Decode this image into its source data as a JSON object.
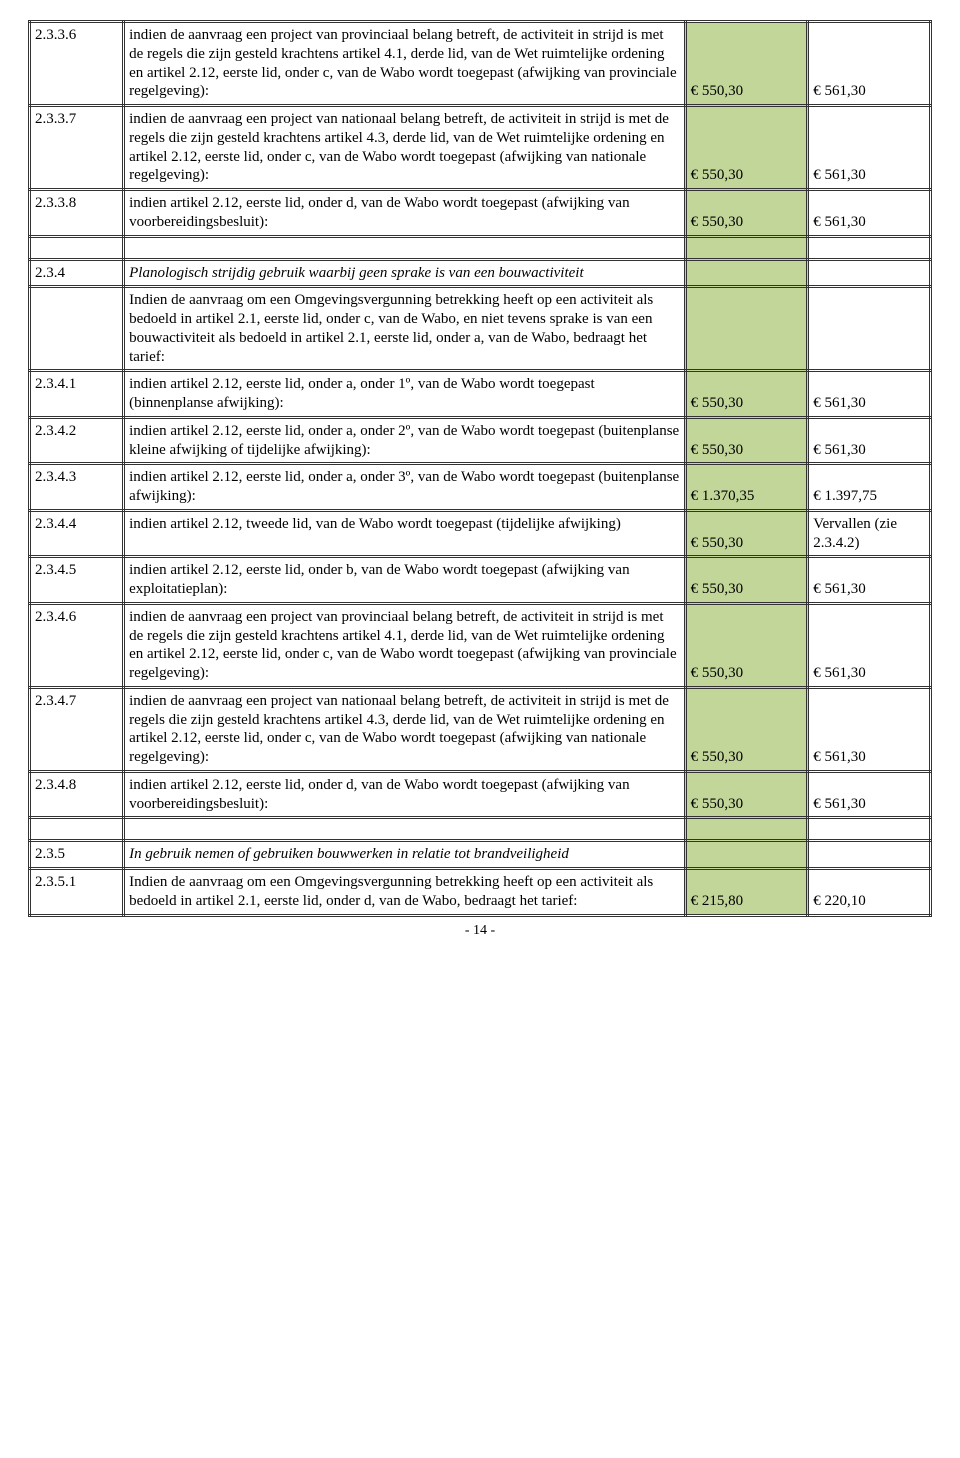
{
  "colors": {
    "green_fill": "#c2d699",
    "border": "#333333",
    "background": "#ffffff",
    "text": "#000000"
  },
  "rows": [
    {
      "num": "2.3.3.6",
      "desc": "indien de aanvraag een project van provinciaal belang betreft, de activiteit in strijd is met de regels die zijn gesteld krachtens artikel 4.1, derde lid, van de Wet ruimtelijke ordening en artikel 2.12, eerste lid, onder c, van de Wabo wordt toegepast (afwijking van provinciale regelgeving):",
      "v1": "€ 550,30",
      "v2": "€ 561,30"
    },
    {
      "num": "2.3.3.7",
      "desc": "indien de aanvraag een project van nationaal belang betreft, de activiteit in strijd is met de regels die zijn gesteld krachtens artikel 4.3, derde lid, van de Wet ruimtelijke ordening en artikel 2.12, eerste lid, onder c, van de Wabo wordt toegepast (afwijking van nationale regelgeving):",
      "v1": "€ 550,30",
      "v2": "€ 561,30"
    },
    {
      "num": "2.3.3.8",
      "desc": "indien artikel 2.12, eerste lid, onder d, van de Wabo wordt toegepast (afwijking van voorbereidingsbesluit):",
      "v1": "€ 550,30",
      "v2": "€ 561,30"
    },
    {
      "spacer": true
    },
    {
      "num": "2.3.4",
      "desc": "Planologisch strijdig gebruik waarbij geen sprake is van een bouwactiviteit",
      "italic": true,
      "v1": "",
      "v2": ""
    },
    {
      "num": "",
      "desc": "Indien de aanvraag om een Omgevingsvergunning betrekking heeft op een activiteit als bedoeld in artikel 2.1, eerste lid, onder c, van de Wabo, en niet tevens sprake is van een bouwactiviteit als bedoeld in artikel 2.1, eerste lid, onder a, van de Wabo, bedraagt het tarief:",
      "v1": "",
      "v2": ""
    },
    {
      "num": "2.3.4.1",
      "desc": "indien artikel 2.12, eerste lid, onder a, onder 1º, van de Wabo wordt toegepast (binnenplanse afwijking):",
      "v1": "€ 550,30",
      "v2": "€ 561,30"
    },
    {
      "num": "2.3.4.2",
      "desc": "indien artikel 2.12, eerste lid, onder a, onder 2º, van de Wabo wordt toegepast (buitenplanse kleine afwijking of tijdelijke afwijking):",
      "v1": "€ 550,30",
      "v2": "€ 561,30"
    },
    {
      "num": "2.3.4.3",
      "desc": "indien artikel 2.12, eerste lid, onder a, onder 3º, van de Wabo wordt toegepast (buitenplanse afwijking):",
      "v1": "€ 1.370,35",
      "v2": "€ 1.397,75"
    },
    {
      "num": "2.3.4.4",
      "desc": "indien artikel 2.12, tweede lid, van de Wabo wordt toegepast (tijdelijke afwijking)",
      "v1": "€ 550,30",
      "v2": "Vervallen (zie 2.3.4.2)"
    },
    {
      "num": "2.3.4.5",
      "desc": "indien artikel 2.12, eerste lid, onder b, van de Wabo wordt toegepast (afwijking van exploitatieplan):",
      "v1": "€ 550,30",
      "v2": "€ 561,30"
    },
    {
      "num": "2.3.4.6",
      "desc": "indien de aanvraag een project van provinciaal belang betreft, de activiteit in strijd is met de regels die zijn gesteld krachtens artikel 4.1, derde lid, van de Wet ruimtelijke ordening en artikel 2.12, eerste lid, onder c, van de Wabo wordt toegepast (afwijking van provinciale regelgeving):",
      "v1": "€ 550,30",
      "v2": "€ 561,30"
    },
    {
      "num": "2.3.4.7",
      "desc": "indien de aanvraag een project van nationaal belang betreft, de activiteit in strijd is met de regels die zijn gesteld krachtens artikel 4.3, derde lid, van de Wet ruimtelijke ordening en artikel 2.12, eerste lid, onder c, van de Wabo wordt toegepast (afwijking van nationale regelgeving):",
      "v1": "€ 550,30",
      "v2": "€ 561,30"
    },
    {
      "num": "2.3.4.8",
      "desc": "indien artikel 2.12, eerste lid, onder d, van de Wabo wordt toegepast (afwijking van voorbereidingsbesluit):",
      "v1": "€ 550,30",
      "v2": "€ 561,30"
    },
    {
      "spacer": true
    },
    {
      "num": "2.3.5",
      "desc": "In gebruik nemen of gebruiken bouwwerken in relatie tot brandveiligheid",
      "italic": true,
      "v1": "",
      "v2": ""
    },
    {
      "num": "2.3.5.1",
      "desc": "Indien de aanvraag om een Omgevingsvergunning betrekking heeft op een activiteit als bedoeld in artikel 2.1, eerste lid, onder d, van de Wabo, bedraagt het tarief:",
      "v1": "€ 215,80",
      "v2": "€ 220,10"
    }
  ],
  "footer": "- 14 -"
}
